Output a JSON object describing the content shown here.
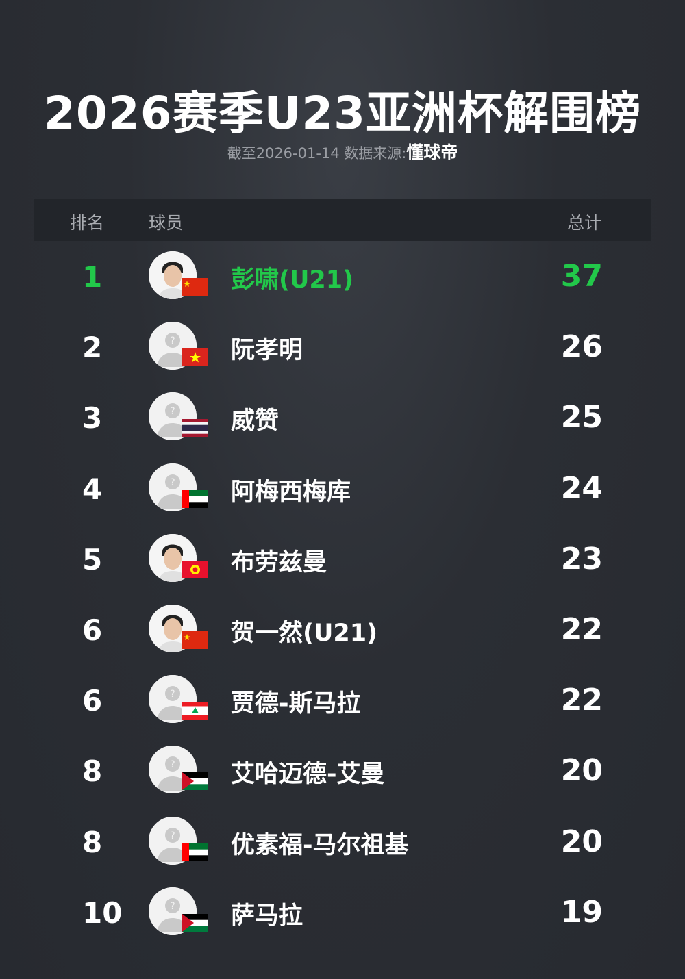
{
  "title": "2026赛季U23亚洲杯解围榜",
  "subtitle": {
    "prefix": "截至2026-01-14 数据来源:",
    "source": "懂球帝"
  },
  "header": {
    "rank": "排名",
    "player": "球员",
    "total": "总计"
  },
  "accent": "#22c84a",
  "rows": [
    {
      "rank": "1",
      "name": "彭啸(U21)",
      "total": "37",
      "flag": "china",
      "photo": true
    },
    {
      "rank": "2",
      "name": "阮孝明",
      "total": "26",
      "flag": "vietnam",
      "photo": false
    },
    {
      "rank": "3",
      "name": "威赞",
      "total": "25",
      "flag": "thailand",
      "photo": false
    },
    {
      "rank": "4",
      "name": "阿梅西梅库",
      "total": "24",
      "flag": "uae",
      "photo": false
    },
    {
      "rank": "5",
      "name": "布劳兹曼",
      "total": "23",
      "flag": "kyrgyzstan",
      "photo": true
    },
    {
      "rank": "6",
      "name": "贺一然(U21)",
      "total": "22",
      "flag": "china",
      "photo": true
    },
    {
      "rank": "6",
      "name": "贾德-斯马拉",
      "total": "22",
      "flag": "lebanon",
      "photo": false
    },
    {
      "rank": "8",
      "name": "艾哈迈德-艾曼",
      "total": "20",
      "flag": "jordan",
      "photo": false
    },
    {
      "rank": "8",
      "name": "优素福-马尔祖基",
      "total": "20",
      "flag": "uae",
      "photo": false
    },
    {
      "rank": "10",
      "name": "萨马拉",
      "total": "19",
      "flag": "jordan",
      "photo": false
    }
  ]
}
